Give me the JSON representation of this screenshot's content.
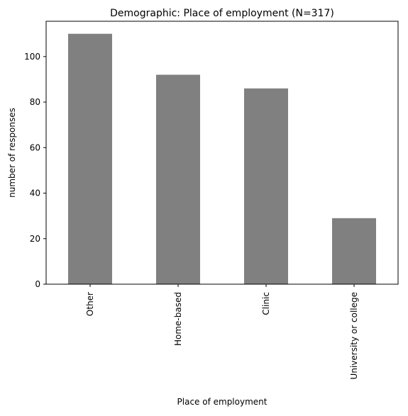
{
  "chart_data": {
    "type": "bar",
    "title": "Demographic: Place of employment (N=317)",
    "xlabel": "Place of employment",
    "ylabel": "number of responses",
    "categories": [
      "Other",
      "Home-based",
      "Clinic",
      "University or college"
    ],
    "values": [
      110,
      92,
      86,
      29
    ],
    "ylim": [
      0,
      115.5
    ],
    "yticks": [
      0,
      20,
      40,
      60,
      80,
      100
    ],
    "bar_color": "#808080",
    "grid": false,
    "legend": "none"
  }
}
